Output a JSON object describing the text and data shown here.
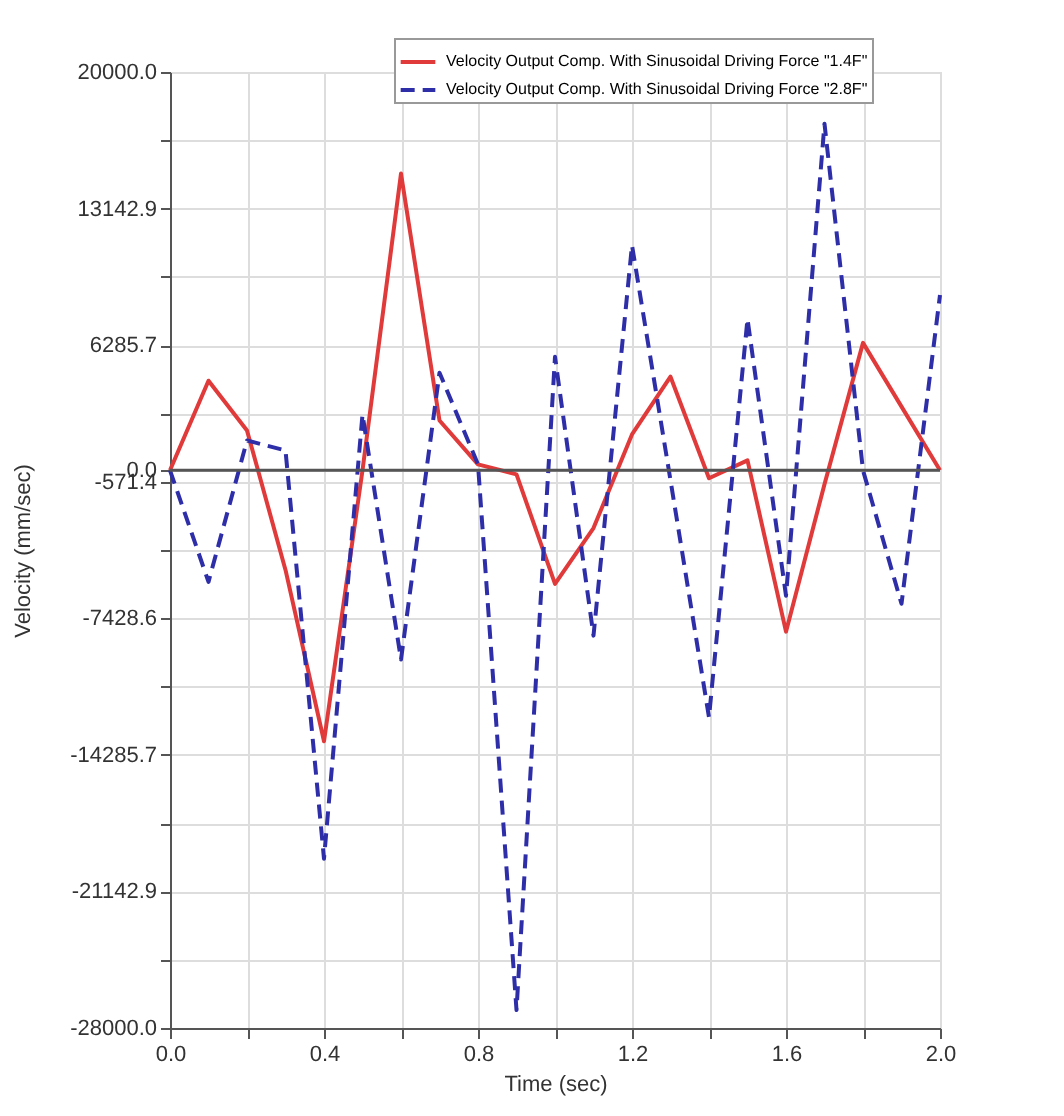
{
  "chart_data": {
    "type": "line",
    "xlabel": "Time (sec)",
    "ylabel": "Velocity (mm/sec)",
    "x": [
      0.0,
      0.1,
      0.2,
      0.3,
      0.4,
      0.5,
      0.6,
      0.7,
      0.8,
      0.9,
      1.0,
      1.1,
      1.2,
      1.3,
      1.4,
      1.5,
      1.6,
      1.7,
      1.8,
      1.9,
      2.0
    ],
    "series": [
      {
        "name": "Velocity Output Comp. With Sinusoidal Driving Force \"1.4F\"",
        "color": "#e03a3a",
        "line_style": "solid",
        "values": [
          0,
          4500,
          2000,
          -5000,
          -13600,
          0,
          14900,
          2500,
          300,
          -200,
          -5700,
          -2900,
          1800,
          4700,
          -400,
          500,
          -8100,
          -700,
          6400,
          3200,
          0
        ]
      },
      {
        "name": "Velocity Output Comp. With Sinusoidal Driving Force \"2.8F\"",
        "color": "#2e2ea8",
        "line_style": "dashed",
        "values": [
          0,
          -5600,
          1500,
          1000,
          -19500,
          2800,
          -9500,
          4900,
          300,
          -27100,
          5700,
          -8300,
          11300,
          -500,
          -12400,
          7600,
          -6300,
          17400,
          0,
          -6700,
          8800
        ]
      }
    ],
    "xlim": [
      0.0,
      2.0
    ],
    "xticks": [
      {
        "value": 0.0,
        "label": "0.0"
      },
      {
        "value": 0.2,
        "label": null
      },
      {
        "value": 0.4,
        "label": "0.4"
      },
      {
        "value": 0.6,
        "label": null
      },
      {
        "value": 0.8,
        "label": "0.8"
      },
      {
        "value": 1.0,
        "label": null
      },
      {
        "value": 1.2,
        "label": "1.2"
      },
      {
        "value": 1.4,
        "label": null
      },
      {
        "value": 1.6,
        "label": "1.6"
      },
      {
        "value": 1.8,
        "label": null
      },
      {
        "value": 2.0,
        "label": "2.0"
      }
    ],
    "ylim": [
      -28000,
      20000
    ],
    "yticks": [
      {
        "value": -28000,
        "label": "-28000.0"
      },
      {
        "value": -24571.4,
        "label": null
      },
      {
        "value": -21142.9,
        "label": "-21142.9"
      },
      {
        "value": -17714.3,
        "label": null
      },
      {
        "value": -14285.7,
        "label": "-14285.7"
      },
      {
        "value": -10857.1,
        "label": null
      },
      {
        "value": -7428.6,
        "label": "-7428.6"
      },
      {
        "value": -4000,
        "label": null
      },
      {
        "value": -571.4,
        "label": "-571.4"
      },
      {
        "value": 0,
        "label": "0.0"
      },
      {
        "value": 2857.1,
        "label": null
      },
      {
        "value": 6285.7,
        "label": "6285.7"
      },
      {
        "value": 9714.3,
        "label": null
      },
      {
        "value": 13142.9,
        "label": "13142.9"
      },
      {
        "value": 16571.4,
        "label": null
      },
      {
        "value": 20000,
        "label": "20000.0"
      }
    ],
    "ref_lines": [
      {
        "axis": "y",
        "value": 0,
        "color": "#555555"
      }
    ],
    "grid": true,
    "legend": "top right",
    "marker": "none"
  }
}
